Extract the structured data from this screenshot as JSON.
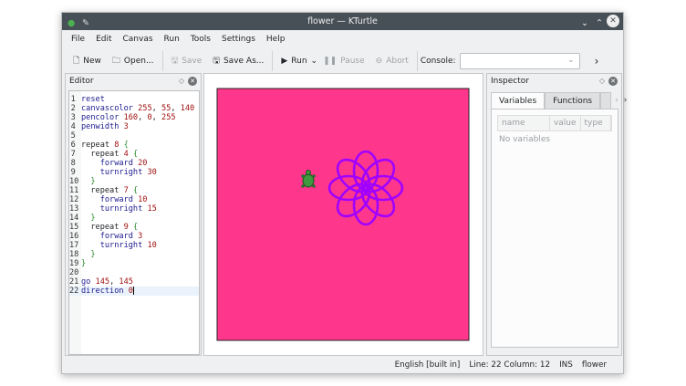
{
  "window": {
    "title": "flower — KTurtle"
  },
  "menu": [
    "File",
    "Edit",
    "Canvas",
    "Run",
    "Tools",
    "Settings",
    "Help"
  ],
  "toolbar": {
    "new": "New",
    "open": "Open...",
    "save": "Save",
    "save_as": "Save As...",
    "run": "Run",
    "pause": "Pause",
    "abort": "Abort",
    "console_label": "Console:",
    "console_value": ""
  },
  "editor": {
    "title": "Editor",
    "lines": [
      [
        [
          "kw",
          "reset"
        ]
      ],
      [
        [
          "kw",
          "canvascolor "
        ],
        [
          "num",
          "255"
        ],
        [
          "",
          ","
        ],
        [
          "num",
          " 55"
        ],
        [
          "",
          ","
        ],
        [
          "num",
          " 140"
        ]
      ],
      [
        [
          "kw",
          "pencolor "
        ],
        [
          "num",
          "160"
        ],
        [
          "",
          ","
        ],
        [
          "num",
          " 0"
        ],
        [
          "",
          ","
        ],
        [
          "num",
          " 255"
        ]
      ],
      [
        [
          "kw",
          "penwidth "
        ],
        [
          "num",
          "3"
        ]
      ],
      [],
      [
        [
          "",
          "repeat "
        ],
        [
          "num",
          "8"
        ],
        [
          "br",
          " {"
        ]
      ],
      [
        [
          "",
          "  repeat "
        ],
        [
          "num",
          "4"
        ],
        [
          "br",
          " {"
        ]
      ],
      [
        [
          "kw",
          "    forward "
        ],
        [
          "num",
          "20"
        ]
      ],
      [
        [
          "kw",
          "    turnright "
        ],
        [
          "num",
          "30"
        ]
      ],
      [
        [
          "br",
          "  }"
        ]
      ],
      [
        [
          "",
          "  repeat "
        ],
        [
          "num",
          "7"
        ],
        [
          "br",
          " {"
        ]
      ],
      [
        [
          "kw",
          "    forward "
        ],
        [
          "num",
          "10"
        ]
      ],
      [
        [
          "kw",
          "    turnright "
        ],
        [
          "num",
          "15"
        ]
      ],
      [
        [
          "br",
          "  }"
        ]
      ],
      [
        [
          "",
          "  repeat "
        ],
        [
          "num",
          "9"
        ],
        [
          "br",
          " {"
        ]
      ],
      [
        [
          "kw",
          "    forward "
        ],
        [
          "num",
          "3"
        ]
      ],
      [
        [
          "kw",
          "    turnright "
        ],
        [
          "num",
          "10"
        ]
      ],
      [
        [
          "br",
          "  }"
        ]
      ],
      [
        [
          "br",
          "}"
        ]
      ],
      [],
      [
        [
          "kw",
          "go "
        ],
        [
          "num",
          "145"
        ],
        [
          "",
          ","
        ],
        [
          "num",
          " 145"
        ]
      ],
      [
        [
          "kw",
          "direction "
        ],
        [
          "num",
          "0"
        ]
      ]
    ]
  },
  "canvas": {
    "background": "#ff378c",
    "pen": "#a000ff",
    "petals": 8
  },
  "inspector": {
    "title": "Inspector",
    "tabs": [
      "Variables",
      "Functions"
    ],
    "columns": [
      "name",
      "value",
      "type"
    ],
    "empty": "No variables"
  },
  "status": {
    "language": "English [built in]",
    "position": "Line: 22 Column: 12",
    "mode": "INS",
    "file": "flower"
  }
}
